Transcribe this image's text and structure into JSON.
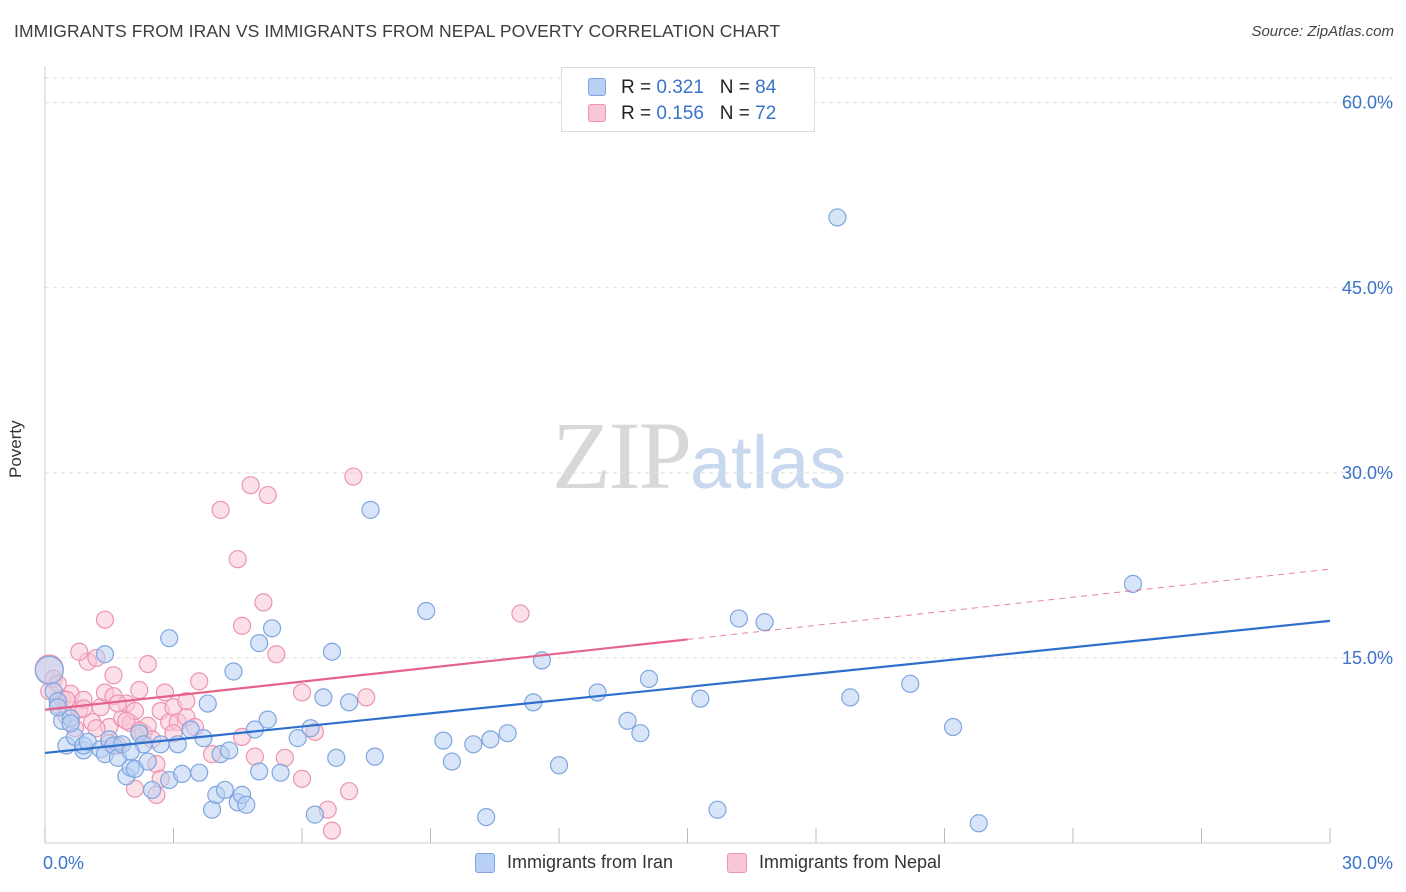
{
  "title": "IMMIGRANTS FROM IRAN VS IMMIGRANTS FROM NEPAL POVERTY CORRELATION CHART",
  "source": "Source: ZipAtlas.com",
  "watermark": {
    "zip": "ZIP",
    "atlas": "atlas"
  },
  "legend": {
    "rows": [
      {
        "r_label": "R =",
        "r_value": "0.321",
        "n_label": "N =",
        "n_value": "84"
      },
      {
        "r_label": "R =",
        "r_value": "0.156",
        "n_label": "N =",
        "n_value": "72"
      }
    ]
  },
  "bottom_legend": {
    "iran": "Immigrants from Iran",
    "nepal": "Immigrants from Nepal"
  },
  "colors": {
    "iran_fill": "#b8d0f3",
    "iran_stroke": "#7fa6e0",
    "iran_line": "#2f6fcc",
    "nepal_fill": "#f9c6d6",
    "nepal_stroke": "#ec94b0",
    "nepal_line": "#e4628c",
    "axis_text": "#3a73c9",
    "grid": "#dddddd"
  },
  "chart_data": {
    "type": "scatter",
    "title": "IMMIGRANTS FROM IRAN VS IMMIGRANTS FROM NEPAL POVERTY CORRELATION CHART",
    "xlabel": "",
    "ylabel": "Poverty",
    "xlim": [
      0,
      30
    ],
    "ylim": [
      0,
      62
    ],
    "x_ticks": [
      0,
      3,
      6,
      9,
      12,
      15,
      18,
      21,
      24,
      27,
      30
    ],
    "x_tick_labels": [
      "0.0%",
      "30.0%"
    ],
    "y_ticks": [
      15,
      30,
      45,
      60
    ],
    "y_tick_labels": [
      "15.0%",
      "30.0%",
      "45.0%",
      "60.0%"
    ],
    "grid": true,
    "series": [
      {
        "name": "Immigrants from Iran",
        "R": 0.321,
        "N": 84,
        "trend": {
          "x": [
            0,
            30
          ],
          "y": [
            7.3,
            18.0
          ],
          "dashed_from": null
        },
        "points": [
          [
            0.1,
            14.0
          ],
          [
            0.2,
            12.3
          ],
          [
            0.3,
            11.5
          ],
          [
            0.4,
            9.9
          ],
          [
            0.5,
            7.9
          ],
          [
            0.6,
            10.1
          ],
          [
            0.7,
            8.6
          ],
          [
            0.9,
            7.5
          ],
          [
            0.9,
            7.9
          ],
          [
            1.0,
            8.2
          ],
          [
            1.3,
            7.6
          ],
          [
            1.4,
            7.2
          ],
          [
            1.5,
            8.4
          ],
          [
            1.6,
            7.9
          ],
          [
            1.7,
            6.9
          ],
          [
            1.9,
            5.4
          ],
          [
            2.0,
            6.1
          ],
          [
            2.1,
            6.0
          ],
          [
            2.2,
            8.9
          ],
          [
            2.3,
            8.0
          ],
          [
            2.5,
            4.3
          ],
          [
            2.7,
            8.0
          ],
          [
            2.9,
            5.1
          ],
          [
            3.1,
            8.0
          ],
          [
            3.2,
            5.6
          ],
          [
            3.4,
            9.2
          ],
          [
            3.6,
            5.7
          ],
          [
            3.9,
            2.7
          ],
          [
            4.0,
            3.9
          ],
          [
            4.1,
            7.2
          ],
          [
            4.2,
            4.3
          ],
          [
            4.3,
            7.5
          ],
          [
            4.5,
            3.3
          ],
          [
            4.6,
            3.9
          ],
          [
            4.7,
            3.1
          ],
          [
            4.9,
            9.2
          ],
          [
            5.0,
            5.8
          ],
          [
            5.2,
            10.0
          ],
          [
            5.5,
            5.7
          ],
          [
            5.9,
            8.5
          ],
          [
            1.4,
            15.3
          ],
          [
            2.9,
            16.6
          ],
          [
            4.4,
            13.9
          ],
          [
            5.0,
            16.2
          ],
          [
            5.3,
            17.4
          ],
          [
            6.3,
            2.3
          ],
          [
            6.5,
            11.8
          ],
          [
            6.7,
            15.5
          ],
          [
            7.1,
            11.4
          ],
          [
            7.7,
            7.0
          ],
          [
            8.9,
            18.8
          ],
          [
            9.5,
            6.6
          ],
          [
            10.4,
            8.4
          ],
          [
            10.8,
            8.9
          ],
          [
            11.4,
            11.4
          ],
          [
            11.6,
            14.8
          ],
          [
            12.0,
            6.3
          ],
          [
            12.9,
            12.2
          ],
          [
            13.6,
            9.9
          ],
          [
            13.9,
            8.9
          ],
          [
            14.1,
            13.3
          ],
          [
            15.3,
            11.7
          ],
          [
            15.7,
            2.7
          ],
          [
            16.2,
            18.2
          ],
          [
            16.8,
            17.9
          ],
          [
            18.5,
            50.7
          ],
          [
            18.8,
            11.8
          ],
          [
            20.2,
            12.9
          ],
          [
            21.2,
            9.4
          ],
          [
            21.8,
            1.6
          ],
          [
            25.4,
            21.0
          ],
          [
            7.6,
            27.0
          ],
          [
            9.3,
            8.3
          ],
          [
            10.0,
            8.0
          ],
          [
            10.3,
            2.1
          ],
          [
            6.8,
            6.9
          ],
          [
            3.8,
            11.3
          ],
          [
            2.4,
            6.6
          ],
          [
            1.8,
            8.0
          ],
          [
            0.3,
            11.0
          ],
          [
            0.6,
            9.7
          ],
          [
            2.0,
            7.4
          ],
          [
            3.7,
            8.5
          ],
          [
            6.2,
            9.3
          ]
        ]
      },
      {
        "name": "Immigrants from Nepal",
        "R": 0.156,
        "N": 72,
        "trend": {
          "x": [
            0,
            15
          ],
          "y": [
            10.8,
            16.5
          ],
          "dashed_to": [
            30,
            22.2
          ]
        },
        "points": [
          [
            0.1,
            14.1
          ],
          [
            0.1,
            12.3
          ],
          [
            0.2,
            13.3
          ],
          [
            0.3,
            11.2
          ],
          [
            0.4,
            11.7
          ],
          [
            0.5,
            10.3
          ],
          [
            0.6,
            12.1
          ],
          [
            0.7,
            9.3
          ],
          [
            0.8,
            10.8
          ],
          [
            0.9,
            11.6
          ],
          [
            1.0,
            14.7
          ],
          [
            1.1,
            9.8
          ],
          [
            1.2,
            15.0
          ],
          [
            1.3,
            11.0
          ],
          [
            1.4,
            12.2
          ],
          [
            1.5,
            9.4
          ],
          [
            1.6,
            11.9
          ],
          [
            1.7,
            7.9
          ],
          [
            1.8,
            10.1
          ],
          [
            1.9,
            11.3
          ],
          [
            2.0,
            9.7
          ],
          [
            2.1,
            10.7
          ],
          [
            2.2,
            12.4
          ],
          [
            2.3,
            8.9
          ],
          [
            2.4,
            9.5
          ],
          [
            2.5,
            8.4
          ],
          [
            2.6,
            6.4
          ],
          [
            2.7,
            10.7
          ],
          [
            2.8,
            12.2
          ],
          [
            2.9,
            9.8
          ],
          [
            3.0,
            11.0
          ],
          [
            3.1,
            9.8
          ],
          [
            3.3,
            10.2
          ],
          [
            3.5,
            9.4
          ],
          [
            3.6,
            13.1
          ],
          [
            4.1,
            27.0
          ],
          [
            4.6,
            17.6
          ],
          [
            4.6,
            8.6
          ],
          [
            4.9,
            7.0
          ],
          [
            5.1,
            19.5
          ],
          [
            5.2,
            28.2
          ],
          [
            5.6,
            6.9
          ],
          [
            6.0,
            12.2
          ],
          [
            6.0,
            5.2
          ],
          [
            6.6,
            2.7
          ],
          [
            6.7,
            1.0
          ],
          [
            7.2,
            29.7
          ],
          [
            7.5,
            11.8
          ],
          [
            11.1,
            18.6
          ],
          [
            4.8,
            29.0
          ],
          [
            4.5,
            23.0
          ],
          [
            1.4,
            18.1
          ],
          [
            0.8,
            15.5
          ],
          [
            1.2,
            9.3
          ],
          [
            2.4,
            14.5
          ],
          [
            2.6,
            3.9
          ],
          [
            3.3,
            11.5
          ],
          [
            5.4,
            15.3
          ],
          [
            1.6,
            13.6
          ],
          [
            0.5,
            11.6
          ],
          [
            0.3,
            12.9
          ],
          [
            0.9,
            10.9
          ],
          [
            1.7,
            11.3
          ],
          [
            1.5,
            8.1
          ],
          [
            1.9,
            9.9
          ],
          [
            2.2,
            9.1
          ],
          [
            2.7,
            5.2
          ],
          [
            3.0,
            8.9
          ],
          [
            3.9,
            7.2
          ],
          [
            7.1,
            4.2
          ],
          [
            2.1,
            4.4
          ],
          [
            6.3,
            9.0
          ]
        ]
      }
    ]
  }
}
